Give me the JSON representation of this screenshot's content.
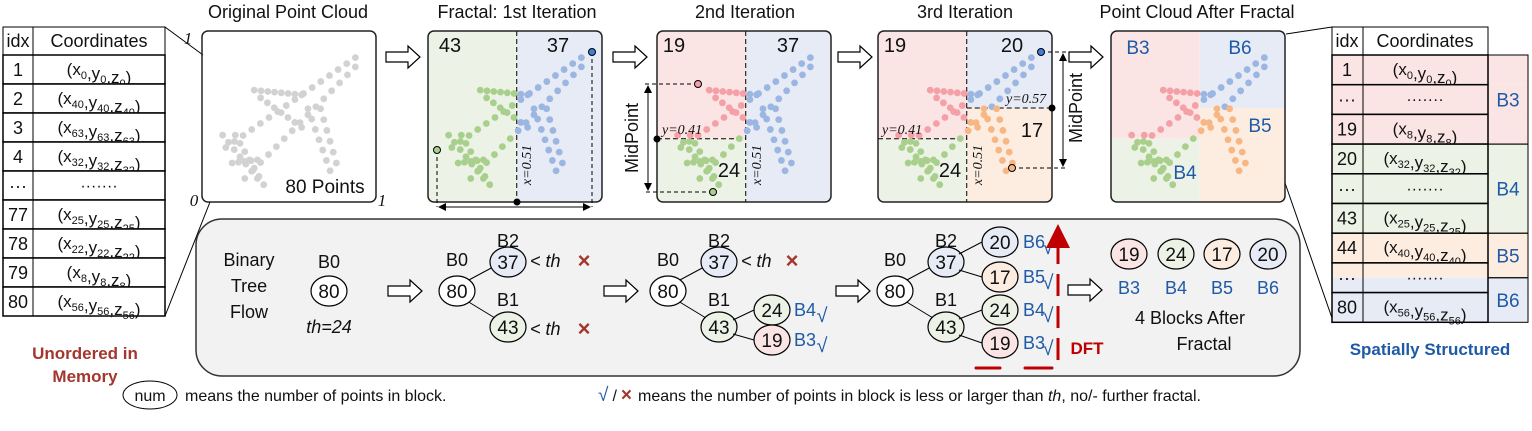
{
  "colors": {
    "red_fill": "#fbe4e4",
    "green_fill": "#ecf2e5",
    "blue_fill": "#e6ebf6",
    "orange_fill": "#fdede1",
    "red_pt": "#f4a0a6",
    "green_pt": "#a8d08c",
    "blue_pt": "#9cb6e2",
    "orange_pt": "#f7b784",
    "gray_pt": "#d2d2d2",
    "label_blue": "#1f5aa6",
    "dark_red": "#a3372d",
    "dft_red": "#c00000",
    "panel": "#f2f2f2"
  },
  "left_table": {
    "header": [
      "idx",
      "Coordinates"
    ],
    "rows": [
      {
        "idx": "1",
        "sub": "0"
      },
      {
        "idx": "2",
        "sub": "40"
      },
      {
        "idx": "3",
        "sub": "63"
      },
      {
        "idx": "4",
        "sub": "32"
      },
      {
        "idx": "···",
        "dots": "·······"
      },
      {
        "idx": "77",
        "sub": "25"
      },
      {
        "idx": "78",
        "sub": "22"
      },
      {
        "idx": "79",
        "sub": "8"
      },
      {
        "idx": "80",
        "sub": "56"
      }
    ],
    "caption_line1": "Unordered in",
    "caption_line2": "Memory"
  },
  "original": {
    "title": "Original Point Cloud",
    "count_label": "80 Points",
    "axis_top": "1",
    "axis_origin": "0",
    "axis_right": "1"
  },
  "iter1": {
    "title": "Fractal: 1st Iteration",
    "left_count": "43",
    "right_count": "37",
    "split_label": "x=0.51"
  },
  "iter2": {
    "title": "2nd Iteration",
    "top_left": "19",
    "right": "37",
    "bottom_left": "24",
    "split_y_label": "y=0.41",
    "split_x_label": "x=0.51",
    "midpoint": "MidPoint"
  },
  "iter3": {
    "title": "3rd Iteration",
    "top_left": "19",
    "top_right": "20",
    "bottom_right": "17",
    "bottom_left": "24",
    "split_y_left_label": "y=0.41",
    "split_y_right_label": "y=0.57",
    "split_x_label": "x=0.51",
    "midpoint": "MidPoint"
  },
  "after": {
    "title": "Point Cloud After Fractal",
    "blocks": [
      "B3",
      "B6",
      "B5",
      "B4"
    ]
  },
  "right_table": {
    "header": [
      "idx",
      "Coordinates"
    ],
    "rows": [
      {
        "idx": "1",
        "sub": "0",
        "region": "red"
      },
      {
        "idx": "···",
        "dots": "·······",
        "region": "red"
      },
      {
        "idx": "19",
        "sub": "8",
        "region": "red"
      },
      {
        "idx": "20",
        "sub": "32",
        "region": "green"
      },
      {
        "idx": "···",
        "dots": "·······",
        "region": "green"
      },
      {
        "idx": "43",
        "sub": "25",
        "region": "green"
      },
      {
        "idx": "44",
        "sub": "40",
        "region": "orange"
      },
      {
        "idx": "···",
        "dots": "·······",
        "region": "orange-blue"
      },
      {
        "idx": "80",
        "sub": "56",
        "region": "blue"
      }
    ],
    "blocks": [
      "B3",
      "B4",
      "B5",
      "B6"
    ],
    "caption": "Spatially Structured"
  },
  "tree_flow": {
    "label_lines": [
      "Binary",
      "Tree",
      "Flow"
    ],
    "step0": {
      "root_label": "B0",
      "root_value": "80",
      "threshold": "th=24"
    },
    "step1": {
      "root_label": "B0",
      "root_value": "80",
      "b2_label": "B2",
      "b2_value": "37",
      "b1_label": "B1",
      "b1_value": "43",
      "cmp": "< th",
      "cross": "×"
    },
    "step2": {
      "root_label": "B0",
      "root_value": "80",
      "b2_label": "B2",
      "b2_value": "37",
      "b1_label": "B1",
      "b1_value": "43",
      "cmp": "< th",
      "cross": "×",
      "leaves": [
        {
          "value": "24",
          "label": "B4"
        },
        {
          "value": "19",
          "label": "B3"
        }
      ],
      "check": "√"
    },
    "step3": {
      "root_label": "B0",
      "root_value": "80",
      "b2_label": "B2",
      "b2_value": "37",
      "b1_label": "B1",
      "b1_value": "43",
      "leaves": [
        {
          "value": "20",
          "label": "B6"
        },
        {
          "value": "17",
          "label": "B5"
        },
        {
          "value": "24",
          "label": "B4"
        },
        {
          "value": "19",
          "label": "B3"
        }
      ],
      "check": "√",
      "dft": "DFT"
    },
    "result": {
      "blocks": [
        {
          "value": "19",
          "label": "B3"
        },
        {
          "value": "24",
          "label": "B4"
        },
        {
          "value": "17",
          "label": "B5"
        },
        {
          "value": "20",
          "label": "B6"
        }
      ],
      "caption_line1": "4 Blocks After",
      "caption_line2": "Fractal"
    }
  },
  "legend": {
    "node_sample": "num",
    "node_text": "means the number of points in block.",
    "check": "√",
    "slash": "/",
    "cross": "×",
    "mark_text_pre": "means the number of points in block is less or larger than ",
    "mark_text_th": "th",
    "mark_text_post": ", no/- further fractal."
  }
}
